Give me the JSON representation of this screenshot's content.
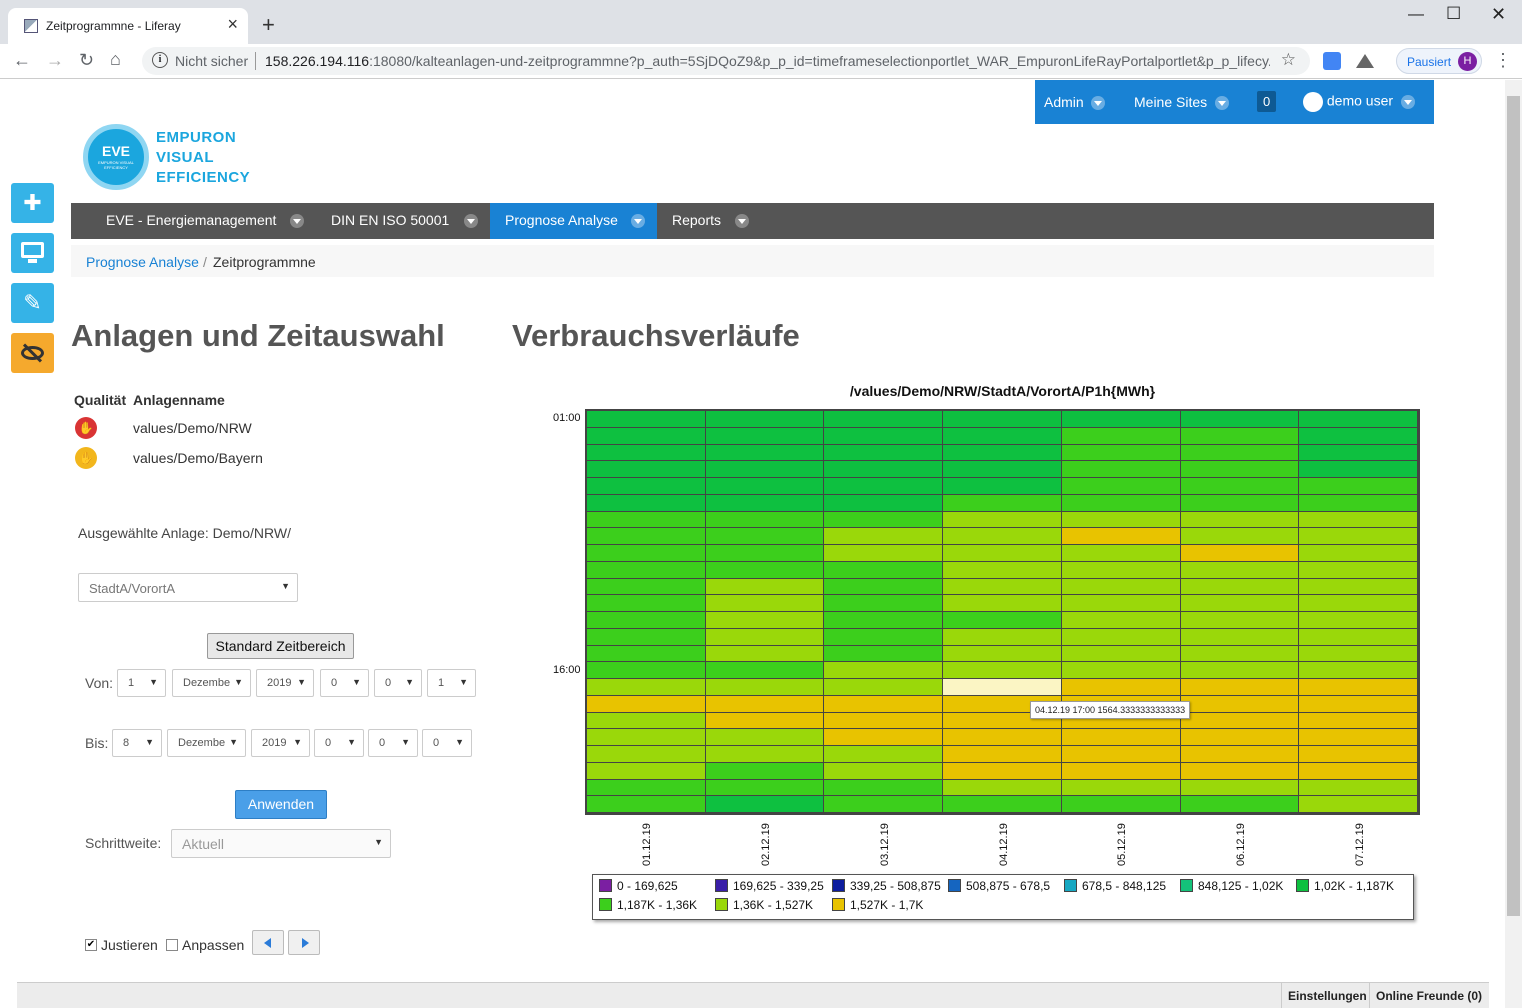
{
  "browser": {
    "tab_title": "Zeitprogrammne - Liferay",
    "security": "Nicht sicher",
    "url_host": "158.226.194.116",
    "url_rest": ":18080/kalteanlagen-und-zeitprogrammne?p_auth=5SjDQoZ9&p_p_id=timeframeselectionportlet_WAR_EmpuronLifeRayPortalportlet&p_p_lifecy...",
    "profile_status": "Pausiert",
    "profile_initial": "H"
  },
  "topbar": {
    "admin": "Admin",
    "sites": "Meine Sites",
    "count": "0",
    "user": "demo user"
  },
  "logo": {
    "badge": "EVE",
    "badge_sub": "EMPURON VISUAL EFFICIENCY",
    "line1": "EMPURON",
    "line2": "VISUAL",
    "line3": "EFFICIENCY"
  },
  "nav": [
    {
      "label": "EVE - Energiemanagement",
      "active": false
    },
    {
      "label": "DIN EN ISO 50001",
      "active": false
    },
    {
      "label": "Prognose Analyse",
      "active": true
    },
    {
      "label": "Reports",
      "active": false
    }
  ],
  "breadcrumb": {
    "parent": "Prognose Analyse",
    "separator": "/",
    "current": "Zeitprogrammne"
  },
  "left": {
    "heading": "Anlagen und Zeitauswahl",
    "col_quality": "Qualität",
    "col_name": "Anlagenname",
    "assets": [
      "values/Demo/NRW",
      "values/Demo/Bayern"
    ],
    "selected_label": "Ausgewählte Anlage: Demo/NRW/",
    "sub_select": "StadtA/VorortA",
    "standard_button": "Standard Zeitbereich",
    "von_label": "Von:",
    "von": [
      "1",
      "Dezembe",
      "2019",
      "0",
      "0",
      "1"
    ],
    "bis_label": "Bis:",
    "bis": [
      "8",
      "Dezembe",
      "2019",
      "0",
      "0",
      "0"
    ],
    "apply_button": "Anwenden",
    "step_label": "Schrittweite:",
    "step_value": "Aktuell",
    "justify_label": "Justieren",
    "fit_label": "Anpassen"
  },
  "right": {
    "heading": "Verbrauchsverläufe"
  },
  "chart_data": {
    "type": "heatmap",
    "title": "/values/Demo/NRW/StadtA/VorortA/P1h{MWh}",
    "x": [
      "01.12.19",
      "02.12.19",
      "03.12.19",
      "04.12.19",
      "05.12.19",
      "06.12.19",
      "07.12.19"
    ],
    "y_ticks": [
      "01:00",
      "16:00"
    ],
    "rows": 24,
    "grid": "0=1,02K-1,187K 1=1,187K-1,36K 2=1,36K-1,527K 3=1,527K-1,7K 4=highlight",
    "values": [
      [
        0,
        0,
        0,
        0,
        0,
        0,
        0
      ],
      [
        0,
        0,
        0,
        0,
        1,
        1,
        0
      ],
      [
        0,
        0,
        0,
        0,
        1,
        1,
        0
      ],
      [
        0,
        0,
        0,
        0,
        1,
        1,
        0
      ],
      [
        0,
        0,
        0,
        0,
        1,
        1,
        1
      ],
      [
        0,
        0,
        0,
        1,
        1,
        1,
        1
      ],
      [
        1,
        1,
        1,
        2,
        2,
        2,
        2
      ],
      [
        1,
        1,
        2,
        2,
        3,
        2,
        2
      ],
      [
        1,
        1,
        2,
        2,
        2,
        3,
        2
      ],
      [
        1,
        1,
        1,
        2,
        2,
        2,
        2
      ],
      [
        1,
        2,
        1,
        2,
        2,
        2,
        2
      ],
      [
        1,
        2,
        1,
        2,
        2,
        2,
        2
      ],
      [
        1,
        2,
        1,
        1,
        2,
        2,
        2
      ],
      [
        1,
        2,
        1,
        2,
        2,
        2,
        2
      ],
      [
        1,
        2,
        1,
        2,
        2,
        2,
        2
      ],
      [
        1,
        1,
        2,
        2,
        2,
        2,
        2
      ],
      [
        2,
        2,
        2,
        4,
        3,
        3,
        3
      ],
      [
        3,
        3,
        3,
        3,
        3,
        3,
        3
      ],
      [
        2,
        3,
        3,
        3,
        3,
        3,
        3
      ],
      [
        2,
        2,
        3,
        3,
        3,
        3,
        3
      ],
      [
        2,
        2,
        2,
        3,
        3,
        3,
        3
      ],
      [
        2,
        1,
        2,
        3,
        3,
        3,
        3
      ],
      [
        1,
        1,
        1,
        2,
        2,
        2,
        2
      ],
      [
        1,
        0,
        1,
        1,
        1,
        1,
        2
      ]
    ],
    "tooltip": "04.12.19 17:00 1564.3333333333333",
    "legend": [
      {
        "label": "0 - 169,625",
        "color": "#7b1fa2"
      },
      {
        "label": "169,625 - 339,25",
        "color": "#3a1fa8"
      },
      {
        "label": "339,25 - 508,875",
        "color": "#0d1d9e"
      },
      {
        "label": "508,875 - 678,5",
        "color": "#1565c0"
      },
      {
        "label": "678,5 - 848,125",
        "color": "#17a8c2"
      },
      {
        "label": "848,125 - 1,02K",
        "color": "#14c27a"
      },
      {
        "label": "1,02K - 1,187K",
        "color": "#0ec040"
      },
      {
        "label": "1,187K - 1,36K",
        "color": "#3ccf1c"
      },
      {
        "label": "1,36K - 1,527K",
        "color": "#9ad80a"
      },
      {
        "label": "1,527K - 1,7K",
        "color": "#e8c300"
      }
    ],
    "highlight_color": "#fbf5c4"
  },
  "footer": {
    "settings": "Einstellungen",
    "friends": "Online Freunde (0)"
  }
}
